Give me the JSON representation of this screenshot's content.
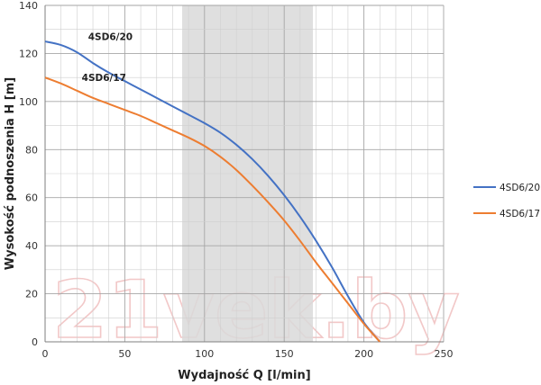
{
  "watermark": "21vek.by",
  "chart_data": {
    "type": "line",
    "xlabel": "Wydajność Q [l/min]",
    "ylabel": "Wysokość podnoszenia H [m]",
    "xlim": [
      0,
      250
    ],
    "ylim": [
      0,
      140
    ],
    "x_ticks": [
      0,
      50,
      100,
      150,
      200,
      250
    ],
    "y_ticks": [
      0,
      20,
      40,
      60,
      80,
      100,
      120,
      140
    ],
    "x_minor_step": 10,
    "y_minor_step": 10,
    "grid": true,
    "shaded_range": [
      86,
      168
    ],
    "legend_position": "right",
    "series": [
      {
        "name": "4SD6/20",
        "color": "#4472c4",
        "x": [
          0,
          10,
          20,
          30,
          40,
          50,
          60,
          70,
          80,
          90,
          100,
          110,
          120,
          130,
          140,
          150,
          160,
          170,
          180,
          190,
          200,
          210
        ],
        "y": [
          125,
          123.5,
          120.5,
          116,
          112,
          108.5,
          105,
          101.5,
          98,
          94.5,
          91,
          87,
          82,
          76,
          69,
          61,
          52,
          42,
          31,
          19,
          8,
          0
        ],
        "inline_label": "4SD6/20",
        "inline_label_at": [
          27,
          127
        ]
      },
      {
        "name": "4SD6/17",
        "color": "#ed7d31",
        "x": [
          0,
          10,
          20,
          30,
          40,
          50,
          60,
          70,
          80,
          90,
          100,
          110,
          120,
          130,
          140,
          150,
          160,
          170,
          180,
          190,
          200,
          210
        ],
        "y": [
          110,
          107.5,
          104.5,
          101.5,
          99,
          96.5,
          94,
          91,
          88,
          85,
          81.5,
          77,
          71.5,
          65,
          58,
          50.5,
          42,
          33,
          24.5,
          16,
          7.5,
          0
        ],
        "inline_label": "4SD6/17",
        "inline_label_at": [
          23,
          110
        ]
      }
    ]
  }
}
